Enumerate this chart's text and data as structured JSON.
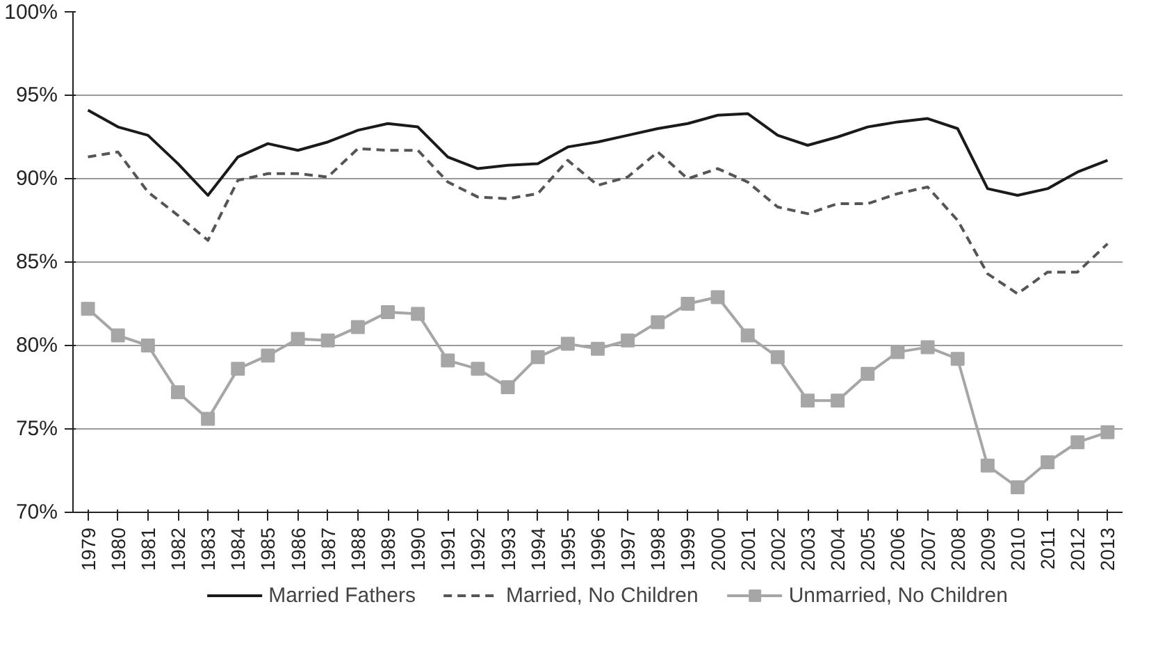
{
  "chart_data": {
    "type": "line",
    "categories": [
      "1979",
      "1980",
      "1981",
      "1982",
      "1983",
      "1984",
      "1985",
      "1986",
      "1987",
      "1988",
      "1989",
      "1990",
      "1991",
      "1992",
      "1993",
      "1994",
      "1995",
      "1996",
      "1997",
      "1998",
      "1999",
      "2000",
      "2001",
      "2002",
      "2003",
      "2004",
      "2005",
      "2006",
      "2007",
      "2008",
      "2009",
      "2010",
      "2011",
      "2012",
      "2013"
    ],
    "series": [
      {
        "name": "Married Fathers",
        "color": "#1a1a1a",
        "line_style": "solid",
        "marker": "none",
        "values": [
          94.1,
          93.1,
          92.6,
          90.9,
          89.0,
          91.3,
          92.1,
          91.7,
          92.2,
          92.9,
          93.3,
          93.1,
          91.3,
          90.6,
          90.8,
          90.9,
          91.9,
          92.2,
          92.6,
          93.0,
          93.3,
          93.8,
          93.9,
          92.6,
          92.0,
          92.5,
          93.1,
          93.4,
          93.6,
          93.0,
          89.4,
          89.0,
          89.4,
          90.4,
          91.1
        ]
      },
      {
        "name": "Married, No Children",
        "color": "#555555",
        "line_style": "dashed",
        "marker": "none",
        "values": [
          91.3,
          91.6,
          89.2,
          87.8,
          86.3,
          89.9,
          90.3,
          90.3,
          90.1,
          91.8,
          91.7,
          91.7,
          89.8,
          88.9,
          88.8,
          89.1,
          91.1,
          89.6,
          90.1,
          91.6,
          90.0,
          90.6,
          89.8,
          88.3,
          87.9,
          88.5,
          88.5,
          89.1,
          89.5,
          87.5,
          84.3,
          83.1,
          84.4,
          84.4,
          86.1
        ]
      },
      {
        "name": "Unmarried, No Children",
        "color": "#a6a6a6",
        "line_style": "solid",
        "marker": "square",
        "values": [
          82.2,
          80.6,
          80.0,
          77.2,
          75.6,
          78.6,
          79.4,
          80.4,
          80.3,
          81.1,
          82.0,
          81.9,
          79.1,
          78.6,
          77.5,
          79.3,
          80.1,
          79.8,
          80.3,
          81.4,
          82.5,
          82.9,
          80.6,
          79.3,
          76.7,
          76.7,
          78.3,
          79.6,
          79.9,
          79.2,
          72.8,
          71.5,
          73.0,
          74.2,
          74.8
        ]
      }
    ],
    "ylim": [
      70,
      100
    ],
    "yticks": [
      {
        "value": 70,
        "label": "70%"
      },
      {
        "value": 75,
        "label": "75%"
      },
      {
        "value": 80,
        "label": "80%"
      },
      {
        "value": 85,
        "label": "85%"
      },
      {
        "value": 90,
        "label": "90%"
      },
      {
        "value": 95,
        "label": "95%"
      },
      {
        "value": 100,
        "label": "100%"
      }
    ],
    "grid": "y",
    "legend": "bottom"
  }
}
